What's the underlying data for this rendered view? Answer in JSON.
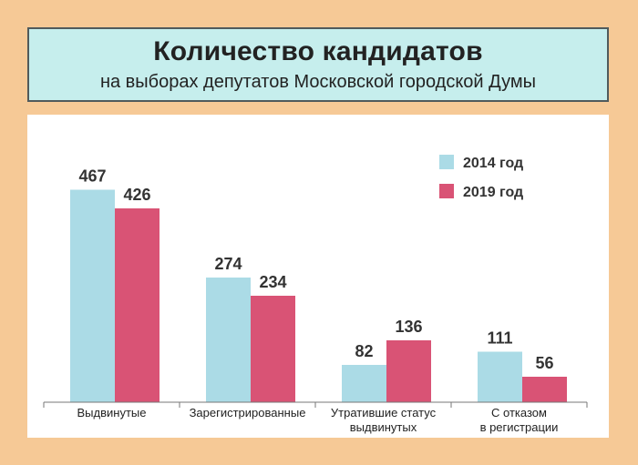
{
  "title": "Количество кандидатов",
  "subtitle": "на выборах депутатов Московской городской Думы",
  "colors": {
    "background": "#f6c996",
    "title_box": "#c6eeed",
    "series_2014": "#abdbe6",
    "series_2019": "#d95375"
  },
  "chart_data": {
    "type": "bar",
    "categories": [
      [
        "Выдвинутые"
      ],
      [
        "Зарегистрированные"
      ],
      [
        "Утратившие статус",
        "выдвинутых"
      ],
      [
        "С отказом",
        "в регистрации"
      ]
    ],
    "series": [
      {
        "name": "2014 год",
        "color": "#abdbe6",
        "values": [
          467,
          274,
          82,
          111
        ]
      },
      {
        "name": "2019 год",
        "color": "#d95375",
        "values": [
          426,
          234,
          136,
          56
        ]
      }
    ],
    "ylim": [
      0,
      500
    ],
    "grid": false,
    "legend": "top-right"
  }
}
